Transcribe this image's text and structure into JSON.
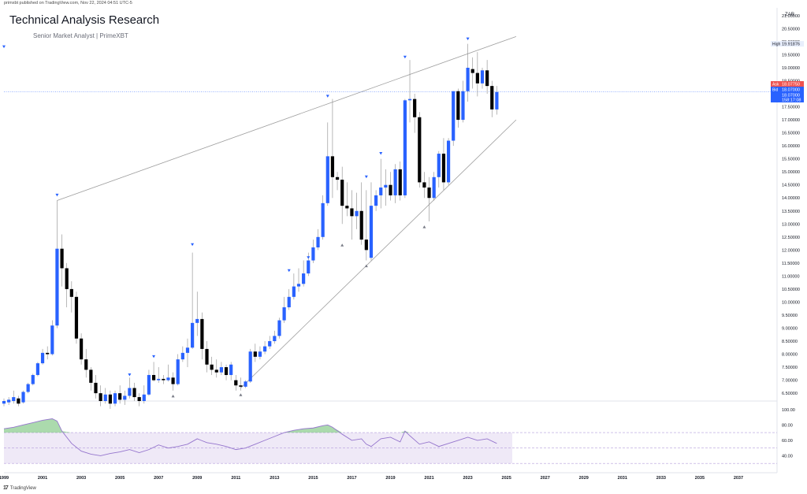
{
  "header": {
    "published": "primxbt published on TradingView.com, Nov 22, 2024 04:51 UTC-5",
    "title": "Technical Analysis Research",
    "subtitle": "Senior Market Analyst | PrimeXBT"
  },
  "footer": {
    "brand": "TradingView",
    "logo": "17"
  },
  "chart_data": {
    "type": "candlestick",
    "currency": "ZAR",
    "ylim": [
      6.2,
      21.3
    ],
    "xlim": [
      1999,
      2039
    ],
    "y_ticks": [
      {
        "v": 21.0,
        "l": "21.00000"
      },
      {
        "v": 20.5,
        "l": "20.50000"
      },
      {
        "v": 20.0,
        "l": "20.00000"
      },
      {
        "v": 19.5,
        "l": "19.50000"
      },
      {
        "v": 19.0,
        "l": "19.00000"
      },
      {
        "v": 18.5,
        "l": "18.50000"
      },
      {
        "v": 17.5,
        "l": "17.50000"
      },
      {
        "v": 17.0,
        "l": "17.00000"
      },
      {
        "v": 16.5,
        "l": "16.50000"
      },
      {
        "v": 16.0,
        "l": "16.00000"
      },
      {
        "v": 15.5,
        "l": "15.50000"
      },
      {
        "v": 15.0,
        "l": "15.00000"
      },
      {
        "v": 14.5,
        "l": "14.50000"
      },
      {
        "v": 14.0,
        "l": "14.00000"
      },
      {
        "v": 13.5,
        "l": "13.50000"
      },
      {
        "v": 13.0,
        "l": "13.00000"
      },
      {
        "v": 12.5,
        "l": "12.50000"
      },
      {
        "v": 12.0,
        "l": "12.00000"
      },
      {
        "v": 11.5,
        "l": "11.50000"
      },
      {
        "v": 11.0,
        "l": "11.00000"
      },
      {
        "v": 10.5,
        "l": "10.50000"
      },
      {
        "v": 10.0,
        "l": "10.00000"
      },
      {
        "v": 9.5,
        "l": "9.50000"
      },
      {
        "v": 9.0,
        "l": "9.00000"
      },
      {
        "v": 8.5,
        "l": "8.50000"
      },
      {
        "v": 8.0,
        "l": "8.00000"
      },
      {
        "v": 7.5,
        "l": "7.50000"
      },
      {
        "v": 7.0,
        "l": "7.00000"
      },
      {
        "v": 6.5,
        "l": "6.50000"
      }
    ],
    "x_ticks": [
      {
        "v": 1999,
        "l": "1999"
      },
      {
        "v": 2001,
        "l": "2001"
      },
      {
        "v": 2003,
        "l": "2003"
      },
      {
        "v": 2005,
        "l": "2005"
      },
      {
        "v": 2007,
        "l": "2007"
      },
      {
        "v": 2009,
        "l": "2009"
      },
      {
        "v": 2011,
        "l": "2011"
      },
      {
        "v": 2013,
        "l": "2013"
      },
      {
        "v": 2015,
        "l": "2015"
      },
      {
        "v": 2017,
        "l": "2017"
      },
      {
        "v": 2019,
        "l": "2019"
      },
      {
        "v": 2021,
        "l": "2021"
      },
      {
        "v": 2023,
        "l": "2023"
      },
      {
        "v": 2025,
        "l": "2025"
      },
      {
        "v": 2027,
        "l": "2027"
      },
      {
        "v": 2029,
        "l": "2029"
      },
      {
        "v": 2031,
        "l": "2031"
      },
      {
        "v": 2033,
        "l": "2033"
      },
      {
        "v": 2035,
        "l": "2035"
      },
      {
        "v": 2037,
        "l": "2037"
      }
    ],
    "price_labels": {
      "high": {
        "label": "High",
        "value": "19.91876",
        "v": 19.92
      },
      "ask": {
        "label": "Ask",
        "value": "18.07750",
        "v": 18.08
      },
      "bid": {
        "label": "Bid",
        "value": "18.07000",
        "v": 18.07
      },
      "last": {
        "value": "18.07000",
        "v": 18.07
      },
      "countdown": {
        "value": "158:17:08"
      }
    },
    "candles": [
      {
        "t": 1999.0,
        "o": 6.1,
        "h": 6.3,
        "c": 6.2,
        "l": 6.0
      },
      {
        "t": 1999.25,
        "o": 6.15,
        "h": 6.35,
        "c": 6.25,
        "l": 6.05
      },
      {
        "t": 1999.5,
        "o": 6.2,
        "h": 6.6,
        "c": 6.35,
        "l": 6.1
      },
      {
        "t": 1999.75,
        "o": 6.3,
        "h": 6.4,
        "c": 6.1,
        "l": 6.0
      },
      {
        "t": 2000.0,
        "o": 6.15,
        "h": 6.6,
        "c": 6.55,
        "l": 6.1
      },
      {
        "t": 2000.25,
        "o": 6.55,
        "h": 6.9,
        "c": 6.85,
        "l": 6.5
      },
      {
        "t": 2000.5,
        "o": 6.85,
        "h": 7.25,
        "c": 7.2,
        "l": 6.8
      },
      {
        "t": 2000.75,
        "o": 7.2,
        "h": 7.7,
        "c": 7.65,
        "l": 7.15
      },
      {
        "t": 2001.0,
        "o": 7.65,
        "h": 8.2,
        "c": 8.05,
        "l": 7.6
      },
      {
        "t": 2001.25,
        "o": 8.05,
        "h": 8.3,
        "c": 8.0,
        "l": 7.8
      },
      {
        "t": 2001.5,
        "o": 8.0,
        "h": 9.3,
        "c": 9.1,
        "l": 7.95
      },
      {
        "t": 2001.75,
        "o": 9.1,
        "h": 13.9,
        "c": 12.05,
        "l": 9.0
      },
      {
        "t": 2002.0,
        "o": 12.05,
        "h": 12.6,
        "c": 11.3,
        "l": 10.6
      },
      {
        "t": 2002.25,
        "o": 11.3,
        "h": 11.5,
        "c": 10.5,
        "l": 9.8
      },
      {
        "t": 2002.5,
        "o": 10.5,
        "h": 10.8,
        "c": 10.2,
        "l": 9.6
      },
      {
        "t": 2002.75,
        "o": 10.2,
        "h": 10.4,
        "c": 8.6,
        "l": 8.4
      },
      {
        "t": 2003.0,
        "o": 8.6,
        "h": 8.8,
        "c": 7.8,
        "l": 7.6
      },
      {
        "t": 2003.25,
        "o": 7.8,
        "h": 8.2,
        "c": 7.4,
        "l": 7.1
      },
      {
        "t": 2003.5,
        "o": 7.4,
        "h": 7.5,
        "c": 6.9,
        "l": 6.6
      },
      {
        "t": 2003.75,
        "o": 6.9,
        "h": 7.2,
        "c": 6.5,
        "l": 6.3
      },
      {
        "t": 2004.0,
        "o": 6.5,
        "h": 6.8,
        "c": 6.2,
        "l": 6.0
      },
      {
        "t": 2004.25,
        "o": 6.2,
        "h": 6.7,
        "c": 6.45,
        "l": 6.1
      },
      {
        "t": 2004.5,
        "o": 6.45,
        "h": 6.6,
        "c": 6.1,
        "l": 5.9
      },
      {
        "t": 2004.75,
        "o": 6.1,
        "h": 6.6,
        "c": 6.5,
        "l": 6.0
      },
      {
        "t": 2005.0,
        "o": 6.5,
        "h": 6.8,
        "c": 6.25,
        "l": 6.1
      },
      {
        "t": 2005.25,
        "o": 6.25,
        "h": 6.6,
        "c": 6.4,
        "l": 6.05
      },
      {
        "t": 2005.5,
        "o": 6.4,
        "h": 7.1,
        "c": 6.7,
        "l": 6.3
      },
      {
        "t": 2005.75,
        "o": 6.7,
        "h": 6.9,
        "c": 6.35,
        "l": 6.2
      },
      {
        "t": 2006.0,
        "o": 6.35,
        "h": 6.5,
        "c": 6.2,
        "l": 6.0
      },
      {
        "t": 2006.25,
        "o": 6.2,
        "h": 6.8,
        "c": 6.45,
        "l": 6.1
      },
      {
        "t": 2006.5,
        "o": 6.45,
        "h": 7.4,
        "c": 7.2,
        "l": 6.4
      },
      {
        "t": 2006.75,
        "o": 7.2,
        "h": 7.7,
        "c": 7.0,
        "l": 6.95
      },
      {
        "t": 2007.0,
        "o": 7.0,
        "h": 7.5,
        "c": 7.05,
        "l": 6.9
      },
      {
        "t": 2007.25,
        "o": 7.05,
        "h": 7.2,
        "c": 7.0,
        "l": 6.85
      },
      {
        "t": 2007.5,
        "o": 7.0,
        "h": 7.6,
        "c": 7.1,
        "l": 6.95
      },
      {
        "t": 2007.75,
        "o": 7.1,
        "h": 7.3,
        "c": 6.85,
        "l": 6.6
      },
      {
        "t": 2008.0,
        "o": 6.85,
        "h": 8.0,
        "c": 7.8,
        "l": 6.8
      },
      {
        "t": 2008.25,
        "o": 7.8,
        "h": 8.3,
        "c": 8.05,
        "l": 7.7
      },
      {
        "t": 2008.5,
        "o": 8.05,
        "h": 8.6,
        "c": 8.25,
        "l": 7.5
      },
      {
        "t": 2008.75,
        "o": 8.25,
        "h": 11.9,
        "c": 9.2,
        "l": 8.2
      },
      {
        "t": 2009.0,
        "o": 9.2,
        "h": 10.4,
        "c": 9.35,
        "l": 8.7
      },
      {
        "t": 2009.25,
        "o": 9.35,
        "h": 9.6,
        "c": 8.2,
        "l": 7.8
      },
      {
        "t": 2009.5,
        "o": 8.2,
        "h": 8.5,
        "c": 7.6,
        "l": 7.3
      },
      {
        "t": 2009.75,
        "o": 7.6,
        "h": 7.9,
        "c": 7.4,
        "l": 7.2
      },
      {
        "t": 2010.0,
        "o": 7.4,
        "h": 7.8,
        "c": 7.3,
        "l": 7.1
      },
      {
        "t": 2010.25,
        "o": 7.3,
        "h": 7.7,
        "c": 7.5,
        "l": 7.2
      },
      {
        "t": 2010.5,
        "o": 7.5,
        "h": 7.6,
        "c": 7.2,
        "l": 7.0
      },
      {
        "t": 2010.75,
        "o": 7.2,
        "h": 7.7,
        "c": 7.6,
        "l": 7.0
      },
      {
        "t": 2011.0,
        "o": 7.0,
        "h": 7.2,
        "c": 6.8,
        "l": 6.6
      },
      {
        "t": 2011.25,
        "o": 6.8,
        "h": 7.1,
        "c": 6.75,
        "l": 6.6
      },
      {
        "t": 2011.5,
        "o": 6.75,
        "h": 7.0,
        "c": 6.95,
        "l": 6.7
      },
      {
        "t": 2011.75,
        "o": 6.95,
        "h": 8.2,
        "c": 8.1,
        "l": 6.9
      },
      {
        "t": 2012.0,
        "o": 8.1,
        "h": 8.4,
        "c": 7.9,
        "l": 7.7
      },
      {
        "t": 2012.25,
        "o": 7.9,
        "h": 8.3,
        "c": 8.1,
        "l": 7.8
      },
      {
        "t": 2012.5,
        "o": 8.1,
        "h": 8.5,
        "c": 8.3,
        "l": 8.0
      },
      {
        "t": 2012.75,
        "o": 8.3,
        "h": 8.7,
        "c": 8.5,
        "l": 8.2
      },
      {
        "t": 2013.0,
        "o": 8.5,
        "h": 8.9,
        "c": 8.7,
        "l": 8.4
      },
      {
        "t": 2013.25,
        "o": 8.7,
        "h": 9.4,
        "c": 9.3,
        "l": 8.6
      },
      {
        "t": 2013.5,
        "o": 9.3,
        "h": 10.2,
        "c": 9.8,
        "l": 9.2
      },
      {
        "t": 2013.75,
        "o": 9.8,
        "h": 10.5,
        "c": 10.2,
        "l": 9.7
      },
      {
        "t": 2014.0,
        "o": 10.2,
        "h": 11.1,
        "c": 10.6,
        "l": 10.1
      },
      {
        "t": 2014.25,
        "o": 10.6,
        "h": 11.3,
        "c": 10.7,
        "l": 10.4
      },
      {
        "t": 2014.5,
        "o": 10.7,
        "h": 11.6,
        "c": 11.1,
        "l": 10.6
      },
      {
        "t": 2014.75,
        "o": 11.1,
        "h": 11.9,
        "c": 11.6,
        "l": 11.0
      },
      {
        "t": 2015.0,
        "o": 11.6,
        "h": 12.4,
        "c": 12.1,
        "l": 11.5
      },
      {
        "t": 2015.25,
        "o": 12.1,
        "h": 12.8,
        "c": 12.5,
        "l": 12.0
      },
      {
        "t": 2015.5,
        "o": 12.5,
        "h": 14.1,
        "c": 13.8,
        "l": 12.4
      },
      {
        "t": 2015.75,
        "o": 13.8,
        "h": 16.9,
        "c": 15.6,
        "l": 13.7
      },
      {
        "t": 2016.0,
        "o": 15.6,
        "h": 17.8,
        "c": 14.8,
        "l": 14.0
      },
      {
        "t": 2016.25,
        "o": 14.8,
        "h": 15.0,
        "c": 14.7,
        "l": 14.3
      },
      {
        "t": 2016.5,
        "o": 14.7,
        "h": 15.2,
        "c": 13.7,
        "l": 13.0
      },
      {
        "t": 2016.75,
        "o": 13.7,
        "h": 14.6,
        "c": 13.6,
        "l": 13.3
      },
      {
        "t": 2017.0,
        "o": 13.6,
        "h": 14.3,
        "c": 13.3,
        "l": 12.4
      },
      {
        "t": 2017.25,
        "o": 13.3,
        "h": 14.2,
        "c": 13.5,
        "l": 12.8
      },
      {
        "t": 2017.5,
        "o": 13.5,
        "h": 14.6,
        "c": 12.4,
        "l": 12.2
      },
      {
        "t": 2017.75,
        "o": 12.4,
        "h": 14.3,
        "c": 12.0,
        "l": 11.6
      },
      {
        "t": 2018.0,
        "o": 11.7,
        "h": 14.6,
        "c": 13.7,
        "l": 11.6
      },
      {
        "t": 2018.25,
        "o": 13.7,
        "h": 14.3,
        "c": 14.1,
        "l": 13.5
      },
      {
        "t": 2018.5,
        "o": 14.1,
        "h": 15.5,
        "c": 14.4,
        "l": 13.6
      },
      {
        "t": 2018.75,
        "o": 14.4,
        "h": 15.1,
        "c": 14.5,
        "l": 13.7
      },
      {
        "t": 2019.0,
        "o": 14.5,
        "h": 15.0,
        "c": 14.1,
        "l": 13.9
      },
      {
        "t": 2019.25,
        "o": 14.1,
        "h": 15.3,
        "c": 15.1,
        "l": 13.8
      },
      {
        "t": 2019.5,
        "o": 15.1,
        "h": 15.4,
        "c": 14.1,
        "l": 13.9
      },
      {
        "t": 2019.75,
        "o": 14.1,
        "h": 17.8,
        "c": 17.75,
        "l": 14.0
      },
      {
        "t": 2020.0,
        "o": 17.75,
        "h": 19.3,
        "c": 17.8,
        "l": 16.9
      },
      {
        "t": 2020.25,
        "o": 17.8,
        "h": 18.0,
        "c": 17.1,
        "l": 16.5
      },
      {
        "t": 2020.5,
        "o": 17.1,
        "h": 17.3,
        "c": 14.6,
        "l": 14.4
      },
      {
        "t": 2020.75,
        "o": 14.6,
        "h": 15.0,
        "c": 14.4,
        "l": 14.0
      },
      {
        "t": 2021.0,
        "o": 14.4,
        "h": 14.8,
        "c": 14.0,
        "l": 13.1
      },
      {
        "t": 2021.25,
        "o": 14.0,
        "h": 15.0,
        "c": 14.8,
        "l": 13.9
      },
      {
        "t": 2021.5,
        "o": 14.8,
        "h": 15.8,
        "c": 15.7,
        "l": 14.4
      },
      {
        "t": 2021.75,
        "o": 15.7,
        "h": 16.3,
        "c": 14.6,
        "l": 14.3
      },
      {
        "t": 2022.0,
        "o": 14.6,
        "h": 16.3,
        "c": 16.2,
        "l": 14.5
      },
      {
        "t": 2022.25,
        "o": 16.2,
        "h": 18.1,
        "c": 18.1,
        "l": 16.0
      },
      {
        "t": 2022.5,
        "o": 18.1,
        "h": 18.2,
        "c": 17.0,
        "l": 16.7
      },
      {
        "t": 2022.75,
        "o": 17.0,
        "h": 18.5,
        "c": 18.1,
        "l": 16.9
      },
      {
        "t": 2023.0,
        "o": 18.1,
        "h": 19.92,
        "c": 19.0,
        "l": 17.7
      },
      {
        "t": 2023.25,
        "o": 18.95,
        "h": 19.4,
        "c": 18.8,
        "l": 18.2
      },
      {
        "t": 2023.5,
        "o": 18.8,
        "h": 19.6,
        "c": 18.4,
        "l": 17.9
      },
      {
        "t": 2023.75,
        "o": 18.4,
        "h": 19.0,
        "c": 18.9,
        "l": 18.2
      },
      {
        "t": 2024.0,
        "o": 18.9,
        "h": 19.3,
        "c": 18.3,
        "l": 18.0
      },
      {
        "t": 2024.25,
        "o": 18.3,
        "h": 18.5,
        "c": 17.4,
        "l": 17.1
      },
      {
        "t": 2024.5,
        "o": 17.4,
        "h": 18.3,
        "c": 18.07,
        "l": 17.2
      }
    ],
    "markers_up": [
      [
        1999.0,
        19.8
      ],
      [
        2001.75,
        14.1
      ],
      [
        2005.5,
        7.2
      ],
      [
        2006.75,
        7.9
      ],
      [
        2008.75,
        12.2
      ],
      [
        2013.75,
        11.2
      ],
      [
        2014.75,
        11.7
      ],
      [
        2015.75,
        17.9
      ],
      [
        2017.75,
        14.8
      ],
      [
        2018.5,
        15.7
      ],
      [
        2019.75,
        19.4
      ],
      [
        2023.0,
        20.1
      ]
    ],
    "markers_down": [
      [
        2007.75,
        6.4
      ],
      [
        2011.25,
        6.45
      ],
      [
        2016.5,
        12.2
      ],
      [
        2017.75,
        11.4
      ],
      [
        2020.75,
        12.9
      ]
    ],
    "trendlines": [
      {
        "x1": 2001.75,
        "y1": 13.9,
        "x2": 2025.5,
        "y2": 20.2
      },
      {
        "x1": 2011.25,
        "y1": 6.7,
        "x2": 2025.5,
        "y2": 17.0
      }
    ],
    "rsi": {
      "ylim": [
        20,
        110
      ],
      "band": [
        30,
        70
      ],
      "mid": 50,
      "ticks": [
        {
          "v": 100,
          "l": "100.00"
        },
        {
          "v": 80,
          "l": "80.00"
        },
        {
          "v": 60,
          "l": "60.00"
        },
        {
          "v": 40,
          "l": "40.00"
        }
      ],
      "x": [
        1999.0,
        1999.5,
        2000.0,
        2000.5,
        2001.0,
        2001.5,
        2001.75,
        2002.0,
        2002.5,
        2003.0,
        2003.5,
        2004.0,
        2004.5,
        2005.0,
        2005.5,
        2006.0,
        2006.5,
        2007.0,
        2007.5,
        2008.0,
        2008.5,
        2009.0,
        2009.5,
        2010.0,
        2010.5,
        2011.0,
        2011.5,
        2012.0,
        2012.5,
        2013.0,
        2013.5,
        2014.0,
        2014.5,
        2015.0,
        2015.5,
        2015.75,
        2016.0,
        2016.5,
        2017.0,
        2017.5,
        2017.75,
        2018.0,
        2018.5,
        2019.0,
        2019.5,
        2019.75,
        2020.0,
        2020.5,
        2021.0,
        2021.5,
        2022.0,
        2022.5,
        2023.0,
        2023.5,
        2024.0,
        2024.5
      ],
      "y": [
        75,
        77,
        80,
        83,
        86,
        88,
        85,
        72,
        56,
        46,
        42,
        40,
        43,
        45,
        48,
        44,
        48,
        54,
        50,
        52,
        55,
        62,
        57,
        55,
        52,
        48,
        50,
        55,
        60,
        65,
        70,
        73,
        75,
        76,
        79,
        80,
        77,
        68,
        60,
        62,
        55,
        52,
        62,
        64,
        58,
        72,
        66,
        55,
        58,
        52,
        56,
        60,
        64,
        60,
        62,
        56
      ]
    }
  }
}
